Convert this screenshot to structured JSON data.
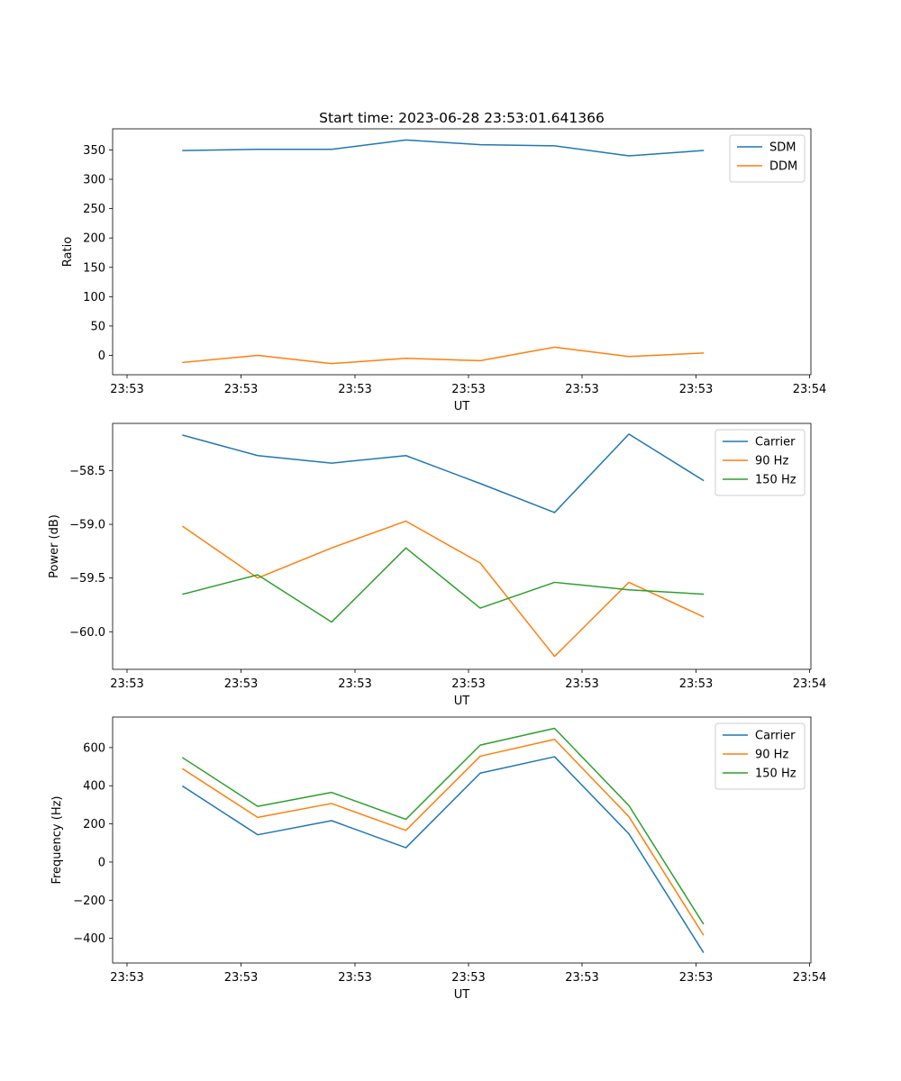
{
  "figure": {
    "title": "Start time: 2023-06-28 23:53:01.641366"
  },
  "chart_data": [
    {
      "type": "line",
      "title": "Start time: 2023-06-28 23:53:01.641366",
      "xlabel": "UT",
      "ylabel": "Ratio",
      "xticks": [
        "23:53",
        "23:53",
        "23:53",
        "23:53",
        "23:53",
        "23:53",
        "23:54"
      ],
      "yticks": [
        0,
        50,
        100,
        150,
        200,
        250,
        300,
        350
      ],
      "ylim": [
        -33,
        386
      ],
      "legend_position": "upper right",
      "series": [
        {
          "name": "SDM",
          "color": "#1f77b4",
          "values": [
            349,
            351,
            351,
            367,
            359,
            357,
            340,
            349
          ]
        },
        {
          "name": "DDM",
          "color": "#ff7f0e",
          "values": [
            -12,
            0,
            -14,
            -5,
            -9,
            14,
            -2,
            4
          ]
        }
      ]
    },
    {
      "type": "line",
      "title": "",
      "xlabel": "UT",
      "ylabel": "Power (dB)",
      "xticks": [
        "23:53",
        "23:53",
        "23:53",
        "23:53",
        "23:53",
        "23:53",
        "23:54"
      ],
      "yticks": [
        "−60.0",
        "−59.5",
        "−59.0",
        "−58.5"
      ],
      "ytick_values": [
        -60.0,
        -59.5,
        -59.0,
        -58.5
      ],
      "ylim": [
        -60.35,
        -58.06
      ],
      "legend_position": "upper right",
      "series": [
        {
          "name": "Carrier",
          "color": "#1f77b4",
          "values": [
            -58.17,
            -58.36,
            -58.43,
            -58.36,
            -58.62,
            -58.89,
            -58.16,
            -58.59
          ]
        },
        {
          "name": "90 Hz",
          "color": "#ff7f0e",
          "values": [
            -59.02,
            -59.5,
            -59.22,
            -58.97,
            -59.36,
            -60.23,
            -59.54,
            -59.86
          ]
        },
        {
          "name": "150 Hz",
          "color": "#2ca02c",
          "values": [
            -59.65,
            -59.47,
            -59.91,
            -59.22,
            -59.78,
            -59.54,
            -59.61,
            -59.65
          ]
        }
      ]
    },
    {
      "type": "line",
      "title": "",
      "xlabel": "UT",
      "ylabel": "Frequency (Hz)",
      "xticks": [
        "23:53",
        "23:53",
        "23:53",
        "23:53",
        "23:53",
        "23:53",
        "23:54"
      ],
      "yticks": [
        "−400",
        "−200",
        "0",
        "200",
        "400",
        "600"
      ],
      "ytick_values": [
        -400,
        -200,
        0,
        200,
        400,
        600
      ],
      "ylim": [
        -529,
        760
      ],
      "legend_position": "upper right",
      "series": [
        {
          "name": "Carrier",
          "color": "#1f77b4",
          "values": [
            397,
            143,
            217,
            75,
            466,
            552,
            148,
            -472
          ]
        },
        {
          "name": "90 Hz",
          "color": "#ff7f0e",
          "values": [
            488,
            234,
            307,
            166,
            555,
            643,
            238,
            -381
          ]
        },
        {
          "name": "150 Hz",
          "color": "#2ca02c",
          "values": [
            546,
            292,
            365,
            224,
            613,
            701,
            296,
            -323
          ]
        }
      ]
    }
  ]
}
